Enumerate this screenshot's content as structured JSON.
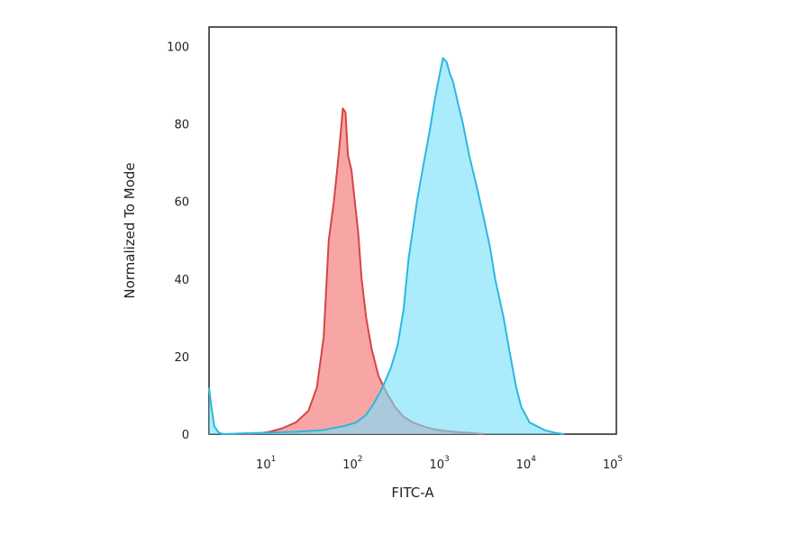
{
  "chart_data": {
    "type": "area",
    "title": "",
    "xlabel": "FITC-A",
    "ylabel": "Normalized To Mode",
    "x_scale": "log",
    "xlim": [
      2,
      100000
    ],
    "ylim": [
      0,
      105
    ],
    "x_ticks": [
      {
        "value": 10,
        "base": "10",
        "exp": "1"
      },
      {
        "value": 100,
        "base": "10",
        "exp": "2"
      },
      {
        "value": 1000,
        "base": "10",
        "exp": "3"
      },
      {
        "value": 10000,
        "base": "10",
        "exp": "4"
      },
      {
        "value": 100000,
        "base": "10",
        "exp": "5"
      }
    ],
    "y_ticks": [
      0,
      20,
      40,
      60,
      80,
      100
    ],
    "grid": false,
    "legend": "none",
    "series": [
      {
        "color": "#d64545",
        "fill": "#f46e6e",
        "x": [
          5,
          8,
          10,
          14,
          20,
          28,
          35,
          42,
          48,
          55,
          60,
          65,
          70,
          75,
          80,
          88,
          95,
          105,
          115,
          130,
          150,
          180,
          220,
          280,
          350,
          450,
          600,
          800,
          1100,
          1500,
          2200,
          3000
        ],
        "y": [
          0,
          0.3,
          0.6,
          1.5,
          3,
          6,
          12,
          25,
          50,
          60,
          68,
          76,
          84,
          83,
          72,
          68,
          61,
          52,
          40,
          30,
          22,
          15,
          11,
          7,
          4.5,
          3,
          2,
          1.2,
          0.8,
          0.5,
          0.3,
          0
        ]
      },
      {
        "color": "#2bb8de",
        "fill": "#78e0fa",
        "x": [
          2,
          2.1,
          2.3,
          2.6,
          3,
          5,
          10,
          20,
          40,
          70,
          100,
          130,
          160,
          200,
          250,
          300,
          350,
          400,
          450,
          500,
          600,
          700,
          800,
          900,
          1000,
          1100,
          1200,
          1300,
          1400,
          1500,
          1700,
          2000,
          2500,
          3000,
          3500,
          4000,
          5000,
          6000,
          7000,
          8000,
          10000,
          15000,
          20000,
          25000
        ],
        "y": [
          12,
          8,
          2,
          0.3,
          0,
          0.2,
          0.4,
          0.6,
          1,
          2,
          3,
          5,
          8,
          12,
          17,
          23,
          32,
          45,
          53,
          60,
          70,
          78,
          86,
          92,
          97,
          96,
          93,
          91,
          88,
          85,
          80,
          72,
          63,
          55,
          48,
          40,
          30,
          20,
          12,
          7,
          3,
          1,
          0.3,
          0
        ]
      }
    ]
  }
}
